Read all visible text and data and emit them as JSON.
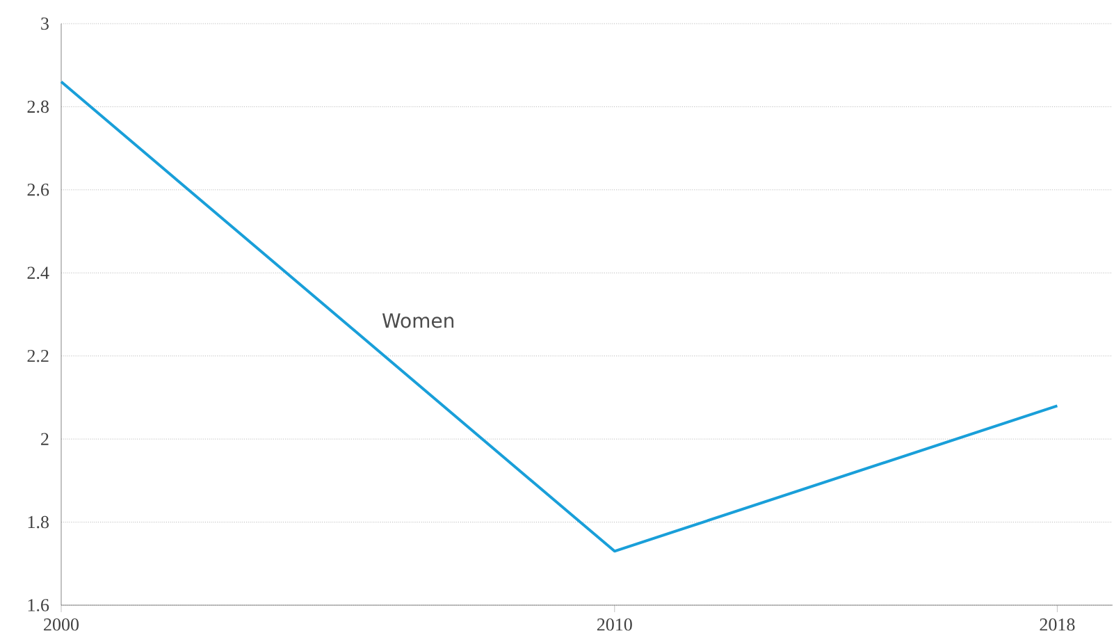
{
  "chart_data": {
    "type": "line",
    "x": [
      2000,
      2010,
      2018
    ],
    "series": [
      {
        "name": "Women",
        "color": "#199fd9",
        "values": [
          2.86,
          1.73,
          2.08
        ]
      }
    ],
    "xlim": [
      2000,
      2019
    ],
    "xticks": [
      2000,
      2010,
      2018
    ],
    "ylim": [
      1.6,
      3
    ],
    "yticks": [
      1.6,
      1.8,
      2,
      2.2,
      2.4,
      2.6,
      2.8,
      3
    ],
    "grid": "y",
    "marker": "none",
    "line_style": "solid"
  }
}
